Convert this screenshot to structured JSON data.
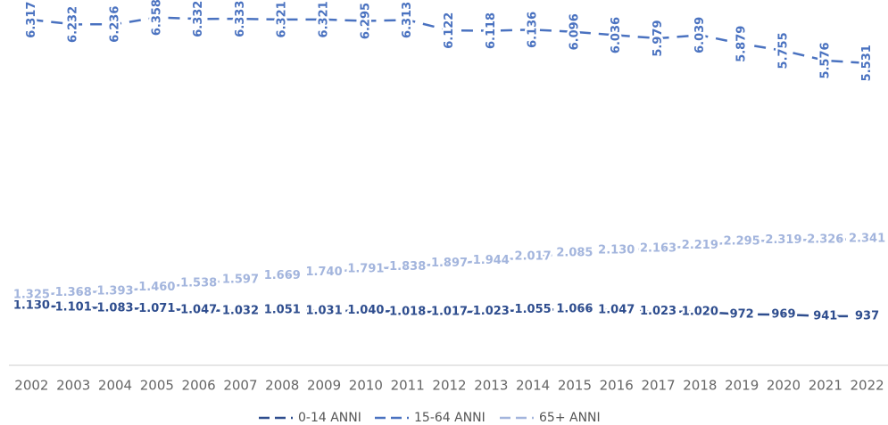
{
  "chart_data": {
    "type": "line",
    "categories": [
      "2002",
      "2003",
      "2004",
      "2005",
      "2006",
      "2007",
      "2008",
      "2009",
      "2010",
      "2011",
      "2012",
      "2013",
      "2014",
      "2015",
      "2016",
      "2017",
      "2018",
      "2019",
      "2020",
      "2021",
      "2022"
    ],
    "ylim": [
      0,
      6400
    ],
    "legend": "bottom",
    "series": [
      {
        "name": "0-14 ANNI",
        "color": "#2e4d8e",
        "values": [
          1130,
          1101,
          1083,
          1071,
          1047,
          1032,
          1051,
          1031,
          1040,
          1018,
          1017,
          1023,
          1055,
          1066,
          1047,
          1023,
          1020,
          972,
          969,
          941,
          937
        ],
        "value_labels": [
          "1.130",
          "1.101",
          "1.083",
          "1.071",
          "1.047",
          "1.032",
          "1.051",
          "1.031",
          "1.040",
          "1.018",
          "1.017",
          "1.023",
          "1.055",
          "1.066",
          "1.047",
          "1.023",
          "1.020",
          "972",
          "969",
          "941",
          "937"
        ]
      },
      {
        "name": "15-64 ANNI",
        "color": "#4a72c0",
        "values": [
          6317,
          6232,
          6236,
          6358,
          6332,
          6333,
          6321,
          6321,
          6295,
          6313,
          6122,
          6118,
          6136,
          6096,
          6036,
          5979,
          6039,
          5879,
          5755,
          5576,
          5531
        ],
        "value_labels": [
          "6.317",
          "6.232",
          "6.236",
          "6.358",
          "6.332",
          "6.333",
          "6.321",
          "6.321",
          "6.295",
          "6.313",
          "6.122",
          "6.118",
          "6.136",
          "6.096",
          "6.036",
          "5.979",
          "6.039",
          "5.879",
          "5.755",
          "5.576",
          "5.531"
        ]
      },
      {
        "name": "65+ ANNI",
        "color": "#a3b5dd",
        "values": [
          1325,
          1368,
          1393,
          1460,
          1538,
          1597,
          1669,
          1740,
          1791,
          1838,
          1897,
          1944,
          2017,
          2085,
          2130,
          2163,
          2219,
          2295,
          2319,
          2326,
          2341
        ],
        "value_labels": [
          "1.325",
          "1.368",
          "1.393",
          "1.460",
          "1.538",
          "1.597",
          "1.669",
          "1.740",
          "1.791",
          "1.838",
          "1.897",
          "1.944",
          "2.017",
          "2.085",
          "2.130",
          "2.163",
          "2.219",
          "2.295",
          "2.319",
          "2.326",
          "2.341"
        ]
      }
    ]
  }
}
